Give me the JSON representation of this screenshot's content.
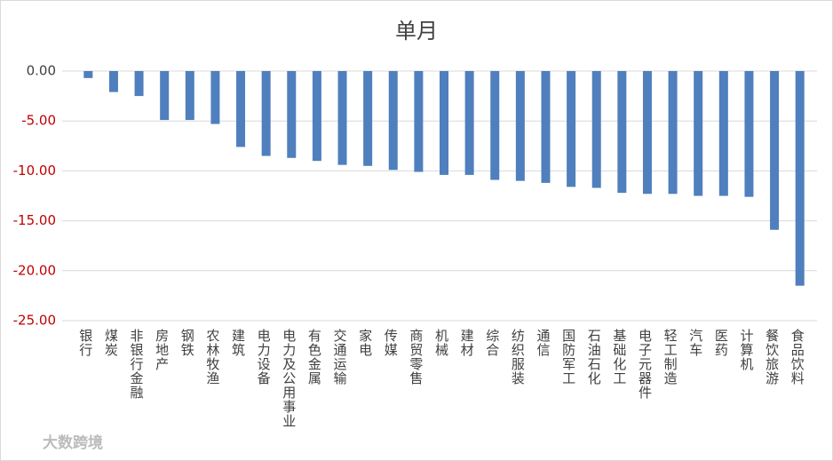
{
  "chart_data": {
    "type": "bar",
    "title": "单月",
    "categories": [
      "银行",
      "煤炭",
      "非银行金融",
      "房地产",
      "钢铁",
      "农林牧渔",
      "建筑",
      "电力设备",
      "电力及公用事业",
      "有色金属",
      "交通运输",
      "家电",
      "传媒",
      "商贸零售",
      "机械",
      "建材",
      "综合",
      "纺织服装",
      "通信",
      "国防军工",
      "石油石化",
      "基础化工",
      "电子元器件",
      "轻工制造",
      "汽车",
      "医药",
      "计算机",
      "餐饮旅游",
      "食品饮料"
    ],
    "values": [
      -0.7,
      -2.1,
      -2.5,
      -4.9,
      -4.9,
      -5.3,
      -7.6,
      -8.5,
      -8.7,
      -9.0,
      -9.4,
      -9.5,
      -9.9,
      -10.1,
      -10.4,
      -10.4,
      -10.9,
      -11.0,
      -11.2,
      -11.6,
      -11.7,
      -12.2,
      -12.3,
      -12.3,
      -12.5,
      -12.5,
      -12.6,
      -15.9,
      -21.5
    ],
    "color": "#4f7fbd",
    "ylim": [
      -25,
      0
    ],
    "yticks": [
      {
        "value": 0,
        "label": "0.00"
      },
      {
        "value": -5,
        "label": "-5.00"
      },
      {
        "value": -10,
        "label": "-10.00"
      },
      {
        "value": -15,
        "label": "-15.00"
      },
      {
        "value": -20,
        "label": "-20.00"
      },
      {
        "value": -25,
        "label": "-25.00"
      }
    ],
    "negative_label_color": "#c00000",
    "grid": true,
    "watermark": "大数跨境"
  }
}
